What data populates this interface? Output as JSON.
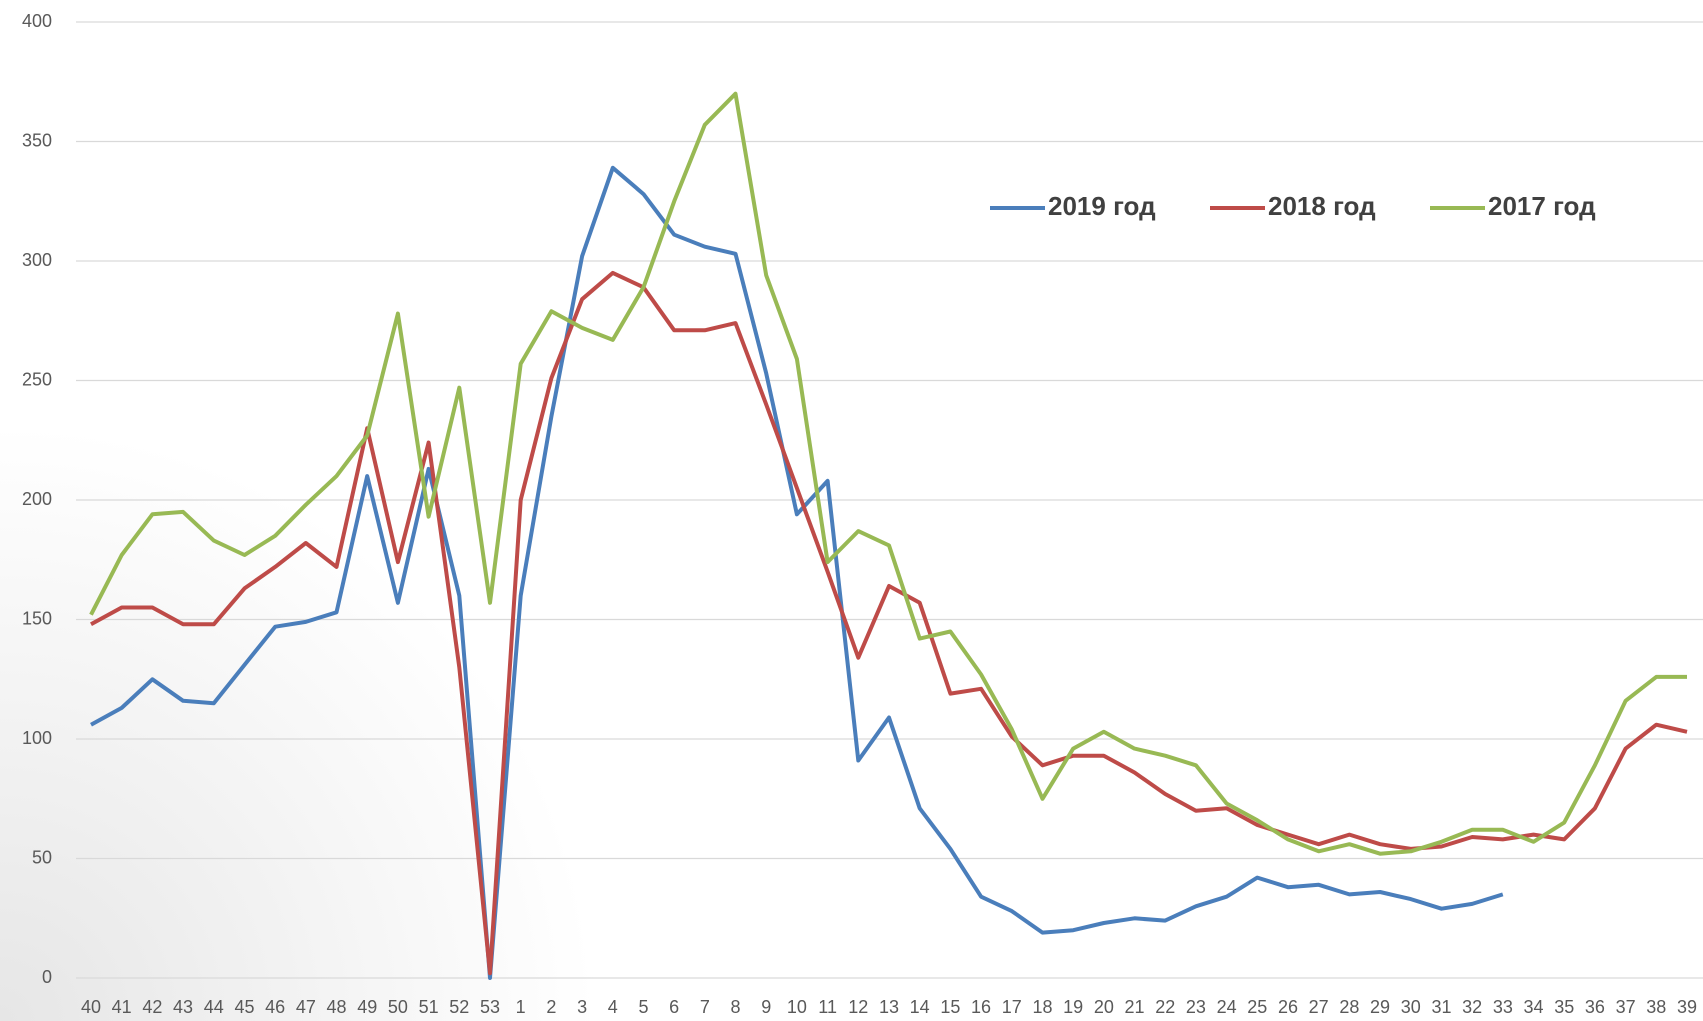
{
  "chart_data": {
    "type": "line",
    "categories": [
      "40",
      "41",
      "42",
      "43",
      "44",
      "45",
      "46",
      "47",
      "48",
      "49",
      "50",
      "51",
      "52",
      "53",
      "1",
      "2",
      "3",
      "4",
      "5",
      "6",
      "7",
      "8",
      "9",
      "10",
      "11",
      "12",
      "13",
      "14",
      "15",
      "16",
      "17",
      "18",
      "19",
      "20",
      "21",
      "22",
      "23",
      "24",
      "25",
      "26",
      "27",
      "28",
      "29",
      "30",
      "31",
      "32",
      "33",
      "34",
      "35",
      "36",
      "37",
      "38",
      "39"
    ],
    "series": [
      {
        "name": "2019 год",
        "color": "#4a7ebb",
        "values": [
          106,
          113,
          125,
          116,
          115,
          131,
          147,
          149,
          153,
          210,
          157,
          213,
          160,
          0,
          160,
          235,
          302,
          339,
          328,
          311,
          306,
          303,
          253,
          194,
          208,
          91,
          109,
          71,
          54,
          34,
          28,
          19,
          20,
          23,
          25,
          24,
          30,
          34,
          42,
          38,
          39,
          35,
          36,
          33,
          29,
          31,
          35,
          null,
          null,
          null,
          null,
          null,
          null
        ]
      },
      {
        "name": "2018 год",
        "color": "#be4b48",
        "values": [
          148,
          155,
          155,
          148,
          148,
          163,
          172,
          182,
          172,
          230,
          174,
          224,
          130,
          2,
          200,
          251,
          284,
          295,
          289,
          271,
          271,
          274,
          240,
          205,
          170,
          134,
          164,
          157,
          119,
          121,
          101,
          89,
          93,
          93,
          86,
          77,
          70,
          71,
          64,
          60,
          56,
          60,
          56,
          54,
          55,
          59,
          58,
          60,
          58,
          71,
          96,
          106,
          103
        ]
      },
      {
        "name": "2017 год",
        "color": "#98b954",
        "values": [
          152,
          177,
          194,
          195,
          183,
          177,
          185,
          198,
          210,
          227,
          278,
          193,
          247,
          157,
          257,
          279,
          272,
          267,
          289,
          325,
          357,
          370,
          294,
          259,
          174,
          187,
          181,
          142,
          145,
          127,
          104,
          75,
          96,
          103,
          96,
          93,
          89,
          73,
          66,
          58,
          53,
          56,
          52,
          53,
          57,
          62,
          62,
          57,
          65,
          89,
          116,
          126,
          126
        ]
      }
    ],
    "ylim": [
      0,
      400
    ],
    "yticks": [
      0,
      50,
      100,
      150,
      200,
      250,
      300,
      350,
      400
    ],
    "grid": true,
    "legend": "upper right"
  }
}
